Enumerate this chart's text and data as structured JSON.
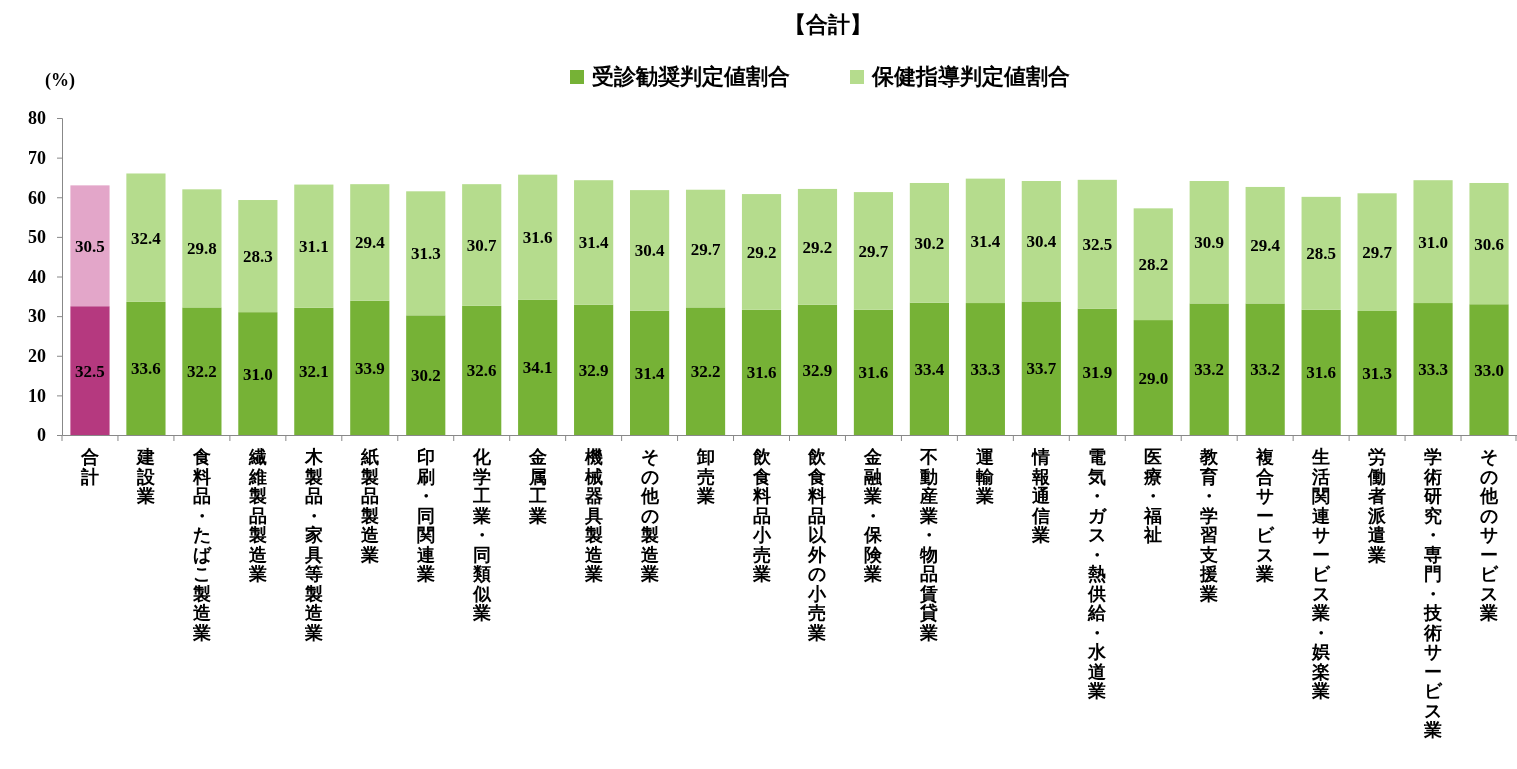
{
  "chart_data": {
    "type": "bar",
    "title": "【合計】",
    "ylabel": "(%)",
    "stacked": true,
    "legend": "top",
    "grid": false,
    "categories": [
      "合計",
      "建設業",
      "食料品・たばこ製造業",
      "繊維製品製造業",
      "木製品・家具等製造業",
      "紙製品製造業",
      "印刷・同関連業",
      "化学工業・同類似業",
      "金属工業",
      "機械器具製造業",
      "その他の製造業",
      "卸売業",
      "飲食料品小売業",
      "飲食料品以外の小売業",
      "金融業・保険業",
      "不動産業・物品賃貸業",
      "運輸業",
      "情報通信業",
      "電気・ガス・熱供給・水道業",
      "医療・福祉",
      "教育・学習支援業",
      "複合サービス業",
      "生活関連サービス業・娯楽業",
      "労働者派遣業",
      "学術研究・専門・技術サービス業",
      "その他のサービス業"
    ],
    "ylim": [
      0,
      80
    ],
    "yticks": [
      0,
      10,
      20,
      30,
      40,
      50,
      60,
      70,
      80
    ],
    "series": [
      {
        "name": "受診勧奨判定値割合",
        "color": "#76b236",
        "colors": [
          "#b5397f",
          "#76b236",
          "#76b236",
          "#76b236",
          "#76b236",
          "#76b236",
          "#76b236",
          "#76b236",
          "#76b236",
          "#76b236",
          "#76b236",
          "#76b236",
          "#76b236",
          "#76b236",
          "#76b236",
          "#76b236",
          "#76b236",
          "#76b236",
          "#76b236",
          "#76b236",
          "#76b236",
          "#76b236",
          "#76b236",
          "#76b236",
          "#76b236",
          "#76b236"
        ],
        "values": [
          32.5,
          33.6,
          32.2,
          31.0,
          32.1,
          33.9,
          30.2,
          32.6,
          34.1,
          32.9,
          31.4,
          32.2,
          31.6,
          32.9,
          31.6,
          33.4,
          33.3,
          33.7,
          31.9,
          29.0,
          33.2,
          33.2,
          31.6,
          31.3,
          33.3,
          33.0
        ],
        "value_labels": [
          "32.5",
          "33.6",
          "32.2",
          "31.0",
          "32.1",
          "33.9",
          "30.2",
          "32.6",
          "34.1",
          "32.9",
          "31.4",
          "32.2",
          "31.6",
          "32.9",
          "31.6",
          "33.4",
          "33.3",
          "33.7",
          "31.9",
          "29.0",
          "33.2",
          "33.2",
          "31.6",
          "31.3",
          "33.3",
          "33.0"
        ]
      },
      {
        "name": "保健指導判定値割合",
        "color": "#b5dc8d",
        "colors": [
          "#e3a6c9",
          "#b5dc8d",
          "#b5dc8d",
          "#b5dc8d",
          "#b5dc8d",
          "#b5dc8d",
          "#b5dc8d",
          "#b5dc8d",
          "#b5dc8d",
          "#b5dc8d",
          "#b5dc8d",
          "#b5dc8d",
          "#b5dc8d",
          "#b5dc8d",
          "#b5dc8d",
          "#b5dc8d",
          "#b5dc8d",
          "#b5dc8d",
          "#b5dc8d",
          "#b5dc8d",
          "#b5dc8d",
          "#b5dc8d",
          "#b5dc8d",
          "#b5dc8d",
          "#b5dc8d",
          "#b5dc8d"
        ],
        "values": [
          30.5,
          32.4,
          29.8,
          28.3,
          31.1,
          29.4,
          31.3,
          30.7,
          31.6,
          31.4,
          30.4,
          29.7,
          29.2,
          29.2,
          29.7,
          30.2,
          31.4,
          30.4,
          32.5,
          28.2,
          30.9,
          29.4,
          28.5,
          29.7,
          31.0,
          30.6
        ],
        "value_labels": [
          "30.5",
          "32.4",
          "29.8",
          "28.3",
          "31.1",
          "29.4",
          "31.3",
          "30.7",
          "31.6",
          "31.4",
          "30.4",
          "29.7",
          "29.2",
          "29.2",
          "29.7",
          "30.2",
          "31.4",
          "30.4",
          "32.5",
          "28.2",
          "30.9",
          "29.4",
          "28.5",
          "29.7",
          "31.0",
          "30.6"
        ]
      }
    ]
  }
}
